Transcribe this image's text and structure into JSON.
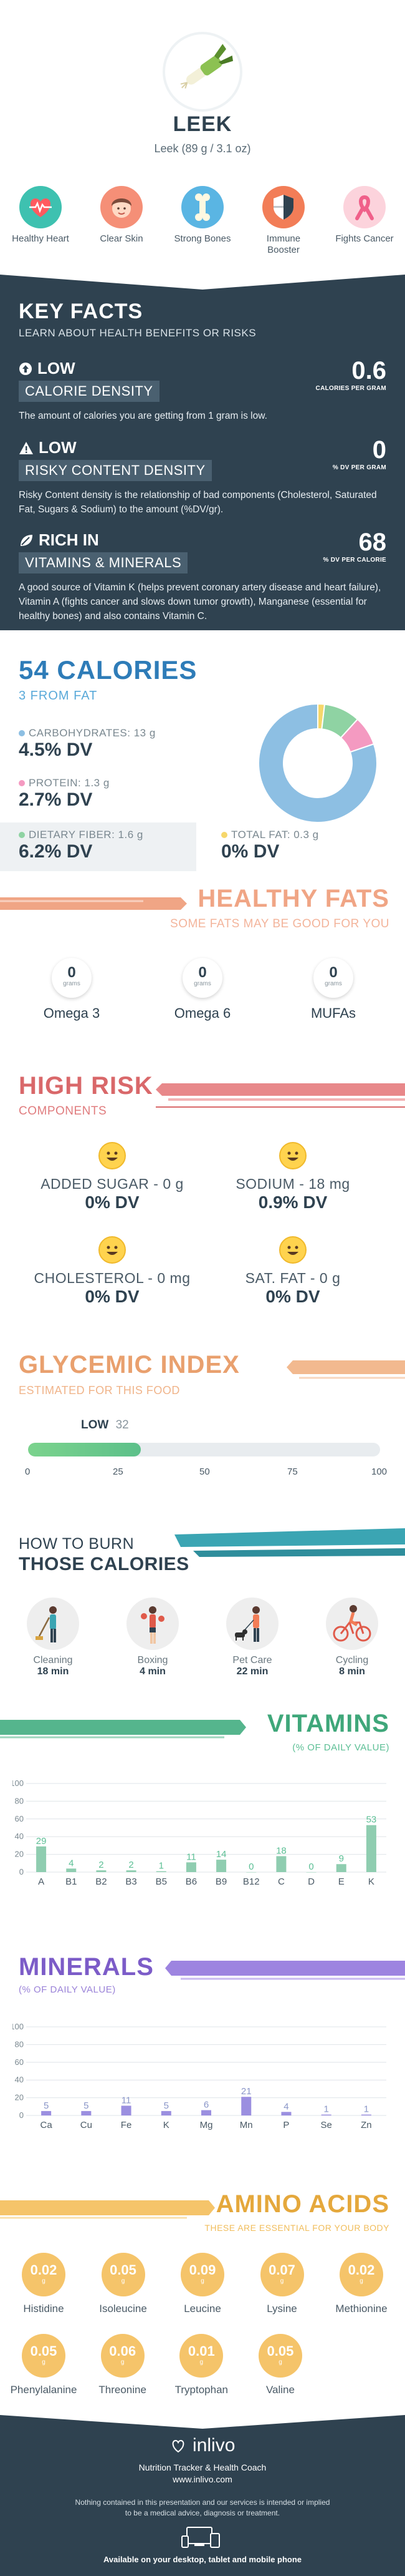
{
  "header": {
    "title": "LEEK",
    "serving": "Leek (89 g / 3.1 oz)"
  },
  "benefits": [
    {
      "label": "Healthy Heart",
      "color": "#3ec1b0",
      "icon": "heart-pulse-icon"
    },
    {
      "label": "Clear Skin",
      "color": "#f58f77",
      "icon": "face-icon"
    },
    {
      "label": "Strong Bones",
      "color": "#5ab5e3",
      "icon": "bone-icon"
    },
    {
      "label": "Immune Booster",
      "color": "#f27d57",
      "icon": "shield-icon"
    },
    {
      "label": "Fights Cancer",
      "color": "#fcd3dc",
      "icon": "ribbon-icon"
    }
  ],
  "key_facts": {
    "title": "KEY FACTS",
    "subtitle": "LEARN ABOUT HEALTH BENEFITS OR RISKS",
    "items": [
      {
        "badge_top": "LOW",
        "badge_bottom": "CALORIE DENSITY",
        "value": "0.6",
        "caption": "CALORIES PER GRAM",
        "text": "The amount of calories you are getting from 1 gram is low.",
        "icon": "up-arrow-icon"
      },
      {
        "badge_top": "LOW",
        "badge_bottom": "RISKY CONTENT DENSITY",
        "value": "0",
        "caption": "% DV PER GRAM",
        "text": "Risky Content density is the relationship of bad components (Cholesterol, Saturated Fat, Sugars & Sodium) to the amount (%DV/gr).",
        "icon": "warning-icon"
      },
      {
        "badge_top": "RICH IN",
        "badge_bottom": "VITAMINS & MINERALS",
        "value": "68",
        "caption": "% DV PER CALORIE",
        "text": "A good source of Vitamin K (helps prevent coronary artery disease and heart failure), Vitamin A (fights cancer and slows down tumor growth), Manganese (essential for healthy bones) and also contains Vitamin C.",
        "icon": "leaf-icon"
      }
    ]
  },
  "calories": {
    "title": "54 CALORIES",
    "subtitle": "3 FROM FAT",
    "macros": [
      {
        "label": "CARBOHYDRATES: 13 g",
        "value": "4.5% DV",
        "color": "#8dbfe3"
      },
      {
        "label": "PROTEIN: 1.3 g",
        "value": "2.7% DV",
        "color": "#f49ac1"
      },
      {
        "label": "DIETARY FIBER: 1.6 g",
        "value": "6.2% DV",
        "color": "#8fd3a3"
      },
      {
        "label": "TOTAL FAT: 0.3 g",
        "value": "0% DV",
        "color": "#f6d76b"
      }
    ]
  },
  "chart_data": [
    {
      "type": "pie",
      "categories": [
        "Carbohydrates",
        "Protein",
        "Dietary Fiber",
        "Total Fat"
      ],
      "values": [
        13,
        1.3,
        1.6,
        0.3
      ],
      "colors": [
        "#8dbfe3",
        "#f49ac1",
        "#8fd3a3",
        "#f6d76b"
      ]
    },
    {
      "type": "bar",
      "categories": [
        "A",
        "B1",
        "B2",
        "B3",
        "B5",
        "B6",
        "B9",
        "B12",
        "C",
        "D",
        "E",
        "K"
      ],
      "values": [
        29,
        4,
        2,
        2,
        1,
        11,
        14,
        0,
        18,
        0,
        9,
        53
      ],
      "yticks": [
        0,
        20,
        40,
        60,
        80,
        100
      ],
      "ylim": [
        0,
        100
      ],
      "color": "#9b8fe0"
    },
    {
      "type": "bar",
      "categories": [
        "Ca",
        "Cu",
        "Fe",
        "K",
        "Mg",
        "Mn",
        "P",
        "Se",
        "Zn"
      ],
      "values": [
        5,
        5,
        11,
        5,
        6,
        21,
        4,
        1,
        1
      ],
      "yticks": [
        0,
        20,
        40,
        60,
        80,
        100
      ],
      "ylim": [
        0,
        100
      ],
      "color": "#9b8fe0"
    }
  ],
  "healthy_fats": {
    "title": "HEALTHY FATS",
    "subtitle": "SOME FATS MAY BE GOOD FOR YOU",
    "unit": "grams",
    "items": [
      {
        "name": "Omega 3",
        "value": "0"
      },
      {
        "name": "Omega 6",
        "value": "0"
      },
      {
        "name": "MUFAs",
        "value": "0"
      }
    ]
  },
  "high_risk": {
    "title": "HIGH RISK",
    "subtitle": "COMPONENTS",
    "items": [
      {
        "name": "ADDED SUGAR - 0 g",
        "value": "0% DV"
      },
      {
        "name": "SODIUM - 18 mg",
        "value": "0.9% DV"
      },
      {
        "name": "CHOLESTEROL - 0 mg",
        "value": "0% DV"
      },
      {
        "name": "SAT. FAT - 0 g",
        "value": "0% DV"
      }
    ]
  },
  "glycemic": {
    "title": "GLYCEMIC INDEX",
    "subtitle": "ESTIMATED FOR THIS FOOD",
    "level": "LOW",
    "value": "32",
    "value_num": 32,
    "ticks": [
      "0",
      "25",
      "50",
      "75",
      "100"
    ]
  },
  "burn": {
    "title_top": "HOW TO BURN",
    "title_bottom": "THOSE CALORIES",
    "items": [
      {
        "name": "Cleaning",
        "time": "18 min",
        "icon": "cleaning-person-icon"
      },
      {
        "name": "Boxing",
        "time": "4 min",
        "icon": "boxing-person-icon"
      },
      {
        "name": "Pet Care",
        "time": "22 min",
        "icon": "dog-walking-icon"
      },
      {
        "name": "Cycling",
        "time": "8 min",
        "icon": "cycling-person-icon"
      }
    ]
  },
  "vitamins": {
    "title": "VITAMINS",
    "subtitle": "(% OF DAILY VALUE)"
  },
  "minerals": {
    "title": "MINERALS",
    "subtitle": "(% OF DAILY VALUE)"
  },
  "amino": {
    "title": "AMINO ACIDS",
    "subtitle": "THESE ARE ESSENTIAL FOR YOUR BODY",
    "unit": "g",
    "items": [
      {
        "name": "Histidine",
        "value": "0.02"
      },
      {
        "name": "Isoleucine",
        "value": "0.05"
      },
      {
        "name": "Leucine",
        "value": "0.09"
      },
      {
        "name": "Lysine",
        "value": "0.07"
      },
      {
        "name": "Methionine",
        "value": "0.02"
      },
      {
        "name": "Phenylalanine",
        "value": "0.05"
      },
      {
        "name": "Threonine",
        "value": "0.06"
      },
      {
        "name": "Tryptophan",
        "value": "0.01"
      },
      {
        "name": "Valine",
        "value": "0.05"
      }
    ]
  },
  "footer": {
    "brand": "inlivo",
    "tagline": "Nutrition Tracker & Health Coach",
    "url": "www.inlivo.com",
    "disclaimer_1": "Nothing contained in this presentation and our services is intended or implied",
    "disclaimer_2": "to be a medical advice, diagnosis or treatment.",
    "available": "Available on your desktop, tablet and mobile phone"
  }
}
